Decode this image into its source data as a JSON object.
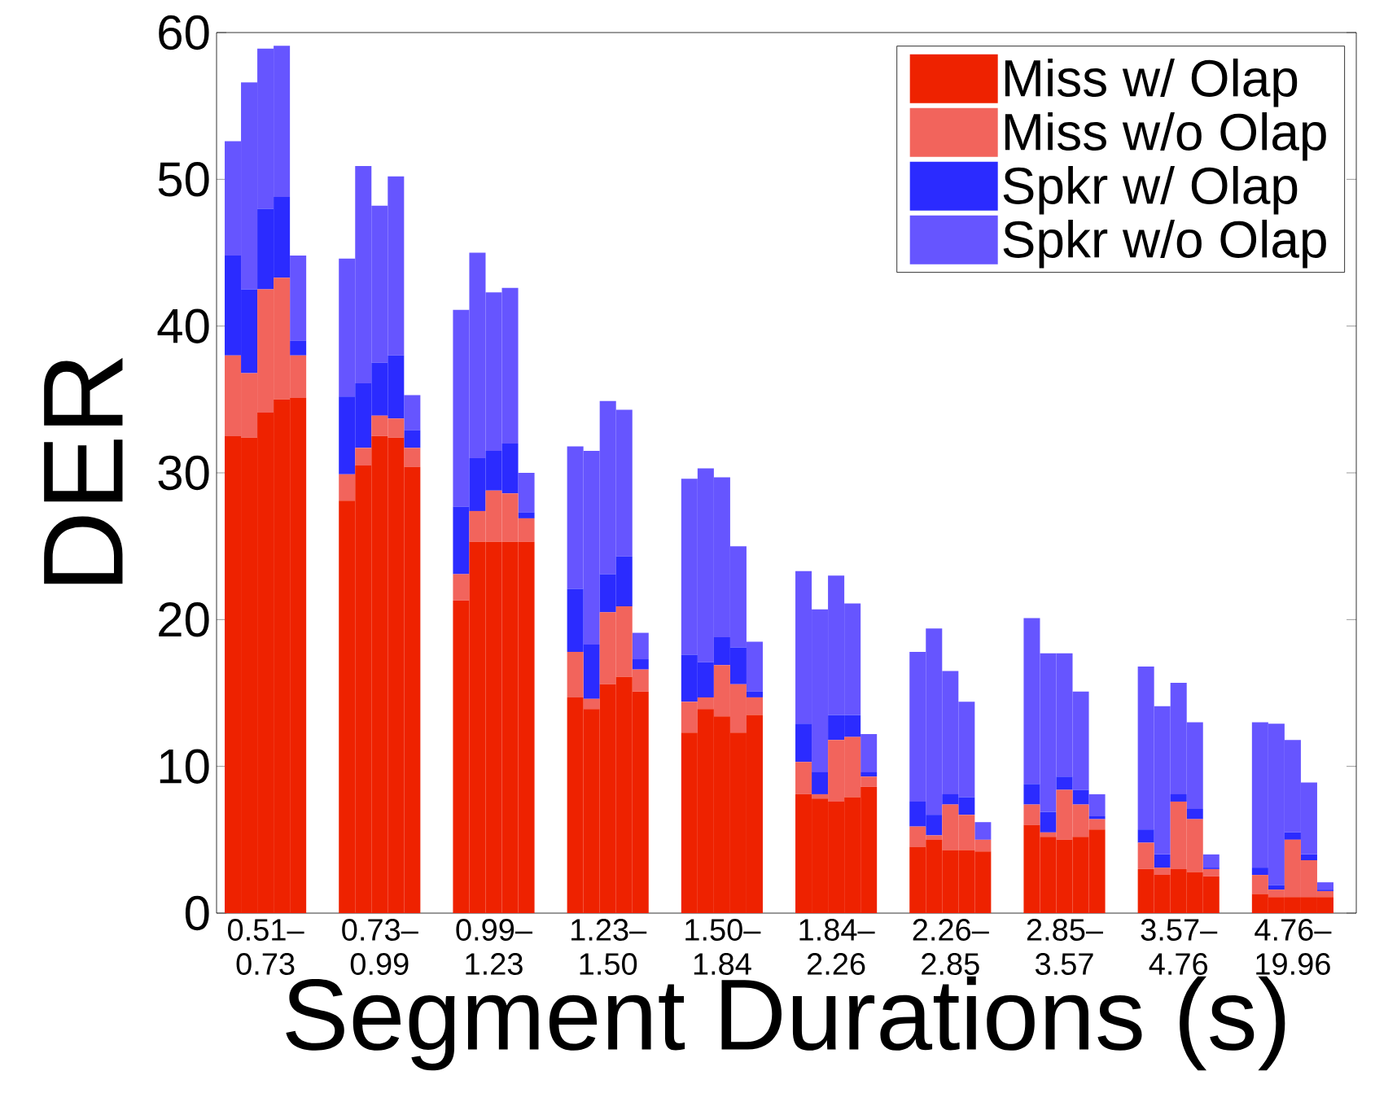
{
  "chart_data": {
    "type": "bar",
    "stacked": true,
    "xlabel": "Segment Durations (s)",
    "ylabel": "DER",
    "legend": "top right",
    "ylim": [
      0,
      60
    ],
    "yticks": [
      0,
      10,
      20,
      30,
      40,
      50,
      60
    ],
    "categories": [
      null,
      null,
      "0.51– 0.73",
      null,
      null,
      null,
      null,
      null,
      null,
      "0.73– 0.99",
      null,
      null,
      null,
      null,
      null,
      null,
      "0.99– 1.23",
      null,
      null,
      null,
      null,
      null,
      null,
      "1.23– 1.50",
      null,
      null,
      null,
      null,
      null,
      null,
      "1.50– 1.84",
      null,
      null,
      null,
      null,
      null,
      null,
      "1.84– 2.26",
      null,
      null,
      null,
      null,
      null,
      null,
      "2.26– 2.85",
      null,
      null,
      null,
      null,
      null,
      null,
      "2.85– 3.57",
      null,
      null,
      null,
      null,
      null,
      null,
      "3.57– 4.76",
      null,
      null,
      null,
      null,
      null,
      null,
      "4.76– 19.96",
      null,
      null
    ],
    "series": [
      {
        "name": "Miss w/ Olap",
        "color": "#ee2200",
        "values": [
          32.5,
          32.4,
          34.1,
          35.0,
          35.1,
          null,
          null,
          28.1,
          30.5,
          32.5,
          32.4,
          30.4,
          null,
          null,
          21.3,
          25.3,
          25.3,
          25.3,
          25.3,
          null,
          null,
          14.7,
          13.9,
          15.6,
          16.1,
          15.1,
          null,
          null,
          12.3,
          13.9,
          13.4,
          12.3,
          13.5,
          null,
          null,
          8.1,
          7.8,
          7.6,
          7.9,
          8.6,
          null,
          null,
          4.5,
          5.0,
          4.3,
          4.3,
          4.2,
          null,
          null,
          6.0,
          5.2,
          5.0,
          5.2,
          5.7,
          null,
          null,
          3.0,
          2.6,
          3.0,
          2.8,
          2.5,
          null,
          null,
          1.3,
          1.1,
          1.1,
          1.1,
          1.1
        ]
      },
      {
        "name": "Miss w/o Olap",
        "color": "#f2645c",
        "values": [
          5.5,
          4.4,
          8.4,
          8.3,
          2.9,
          null,
          null,
          1.8,
          1.2,
          1.4,
          1.3,
          1.3,
          null,
          null,
          1.8,
          2.1,
          3.5,
          3.3,
          1.6,
          null,
          null,
          3.1,
          0.7,
          4.9,
          4.8,
          1.5,
          null,
          null,
          2.1,
          0.8,
          3.5,
          3.3,
          1.2,
          null,
          null,
          2.2,
          0.3,
          4.2,
          4.1,
          0.7,
          null,
          null,
          1.4,
          0.3,
          3.1,
          2.4,
          0.8,
          null,
          null,
          1.4,
          0.3,
          3.4,
          2.2,
          0.7,
          null,
          null,
          1.8,
          0.5,
          4.6,
          3.6,
          0.5,
          null,
          null,
          1.3,
          0.5,
          3.9,
          2.5,
          0.4
        ]
      },
      {
        "name": "Spkr w/ Olap",
        "color": "#2b2bff",
        "values": [
          6.8,
          5.7,
          5.5,
          5.5,
          1.0,
          null,
          null,
          5.3,
          4.4,
          3.6,
          4.3,
          1.2,
          null,
          null,
          4.6,
          3.6,
          2.7,
          3.4,
          0.4,
          null,
          null,
          4.3,
          3.7,
          2.6,
          3.4,
          0.7,
          null,
          null,
          3.2,
          2.4,
          1.9,
          2.5,
          0.4,
          null,
          null,
          2.6,
          1.5,
          1.7,
          1.5,
          0.3,
          null,
          null,
          1.7,
          1.4,
          0.7,
          1.2,
          0,
          null,
          null,
          1.4,
          1.4,
          0.9,
          1.0,
          0.2,
          null,
          null,
          0.9,
          0.9,
          0.5,
          0.7,
          0.1,
          null,
          null,
          0.5,
          0.3,
          0.5,
          0.4,
          0.1
        ]
      },
      {
        "name": "Spkr w/o Olap",
        "color": "#6655ff",
        "values": [
          7.8,
          14.1,
          10.9,
          10.3,
          5.8,
          null,
          null,
          9.4,
          14.8,
          10.7,
          12.2,
          2.4,
          null,
          null,
          13.4,
          14.0,
          10.8,
          10.6,
          2.7,
          null,
          null,
          9.7,
          13.2,
          11.8,
          10.0,
          1.8,
          null,
          null,
          12.0,
          13.2,
          10.9,
          6.9,
          3.4,
          null,
          null,
          10.4,
          11.1,
          9.5,
          7.6,
          2.6,
          null,
          null,
          10.2,
          12.7,
          8.4,
          6.5,
          1.2,
          null,
          null,
          11.3,
          10.8,
          8.4,
          6.7,
          1.5,
          null,
          null,
          11.1,
          10.1,
          7.6,
          5.9,
          0.9,
          null,
          null,
          9.9,
          11.0,
          6.3,
          4.9,
          0.5
        ]
      }
    ]
  }
}
